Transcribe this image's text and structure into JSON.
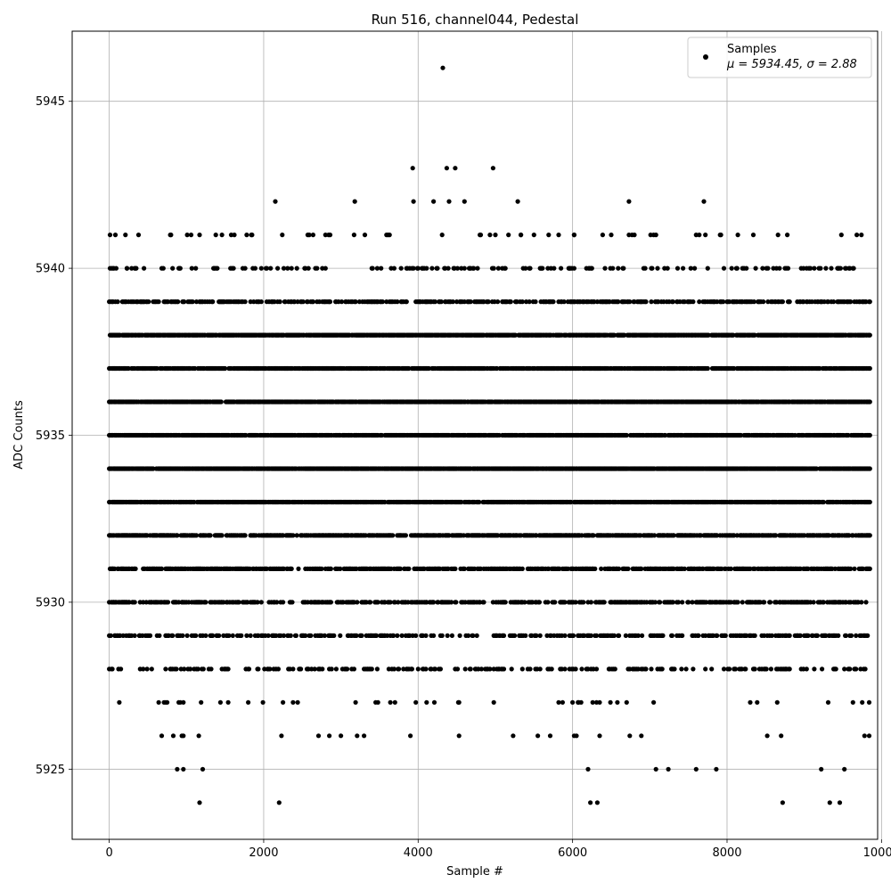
{
  "chart_data": {
    "type": "scatter",
    "title": "Run 516, channel044, Pedestal",
    "xlabel": "Sample #",
    "ylabel": "ADC Counts",
    "xlim": [
      -480,
      9950
    ],
    "ylim": [
      5922.9,
      5947.1
    ],
    "xticks": [
      0,
      2000,
      4000,
      6000,
      8000,
      10000
    ],
    "yticks": [
      5925,
      5930,
      5935,
      5940,
      5945
    ],
    "grid": true,
    "legend": {
      "placement": "top-right",
      "label": "Samples",
      "stats_line": "μ = 5934.45, σ = 2.88"
    },
    "marker_color": "#000000",
    "series": [
      {
        "name": "Samples",
        "n_points": 9850,
        "x_range": [
          0,
          9850
        ],
        "mean": 5934.45,
        "sigma": 2.88,
        "points": [
          [
            0,
            5939
          ],
          [
            10,
            5941
          ],
          [
            30,
            5940
          ],
          [
            50,
            5931
          ],
          [
            60,
            5930
          ],
          [
            90,
            5940
          ],
          [
            120,
            5928
          ],
          [
            150,
            5931
          ],
          [
            210,
            5941
          ],
          [
            230,
            5940
          ],
          [
            270,
            5929
          ],
          [
            380,
            5941
          ],
          [
            390,
            5929
          ],
          [
            450,
            5939
          ],
          [
            640,
            5927
          ],
          [
            680,
            5926
          ],
          [
            700,
            5940
          ],
          [
            800,
            5941
          ],
          [
            830,
            5926
          ],
          [
            880,
            5925
          ],
          [
            900,
            5940
          ],
          [
            920,
            5927
          ],
          [
            940,
            5926
          ],
          [
            960,
            5925
          ],
          [
            1060,
            5941
          ],
          [
            1120,
            5940
          ],
          [
            1160,
            5926
          ],
          [
            1170,
            5924
          ],
          [
            1210,
            5925
          ],
          [
            1580,
            5941
          ],
          [
            1620,
            5941
          ],
          [
            1780,
            5941
          ],
          [
            1850,
            5941
          ],
          [
            1990,
            5927
          ],
          [
            2150,
            5942
          ],
          [
            2200,
            5924
          ],
          [
            2230,
            5926
          ],
          [
            3000,
            5926
          ],
          [
            3180,
            5942
          ],
          [
            3310,
            5941
          ],
          [
            3300,
            5926
          ],
          [
            3480,
            5927
          ],
          [
            3900,
            5926
          ],
          [
            3930,
            5943
          ],
          [
            3940,
            5942
          ],
          [
            4200,
            5942
          ],
          [
            4320,
            5946
          ],
          [
            4370,
            5943
          ],
          [
            4400,
            5942
          ],
          [
            4480,
            5943
          ],
          [
            4530,
            5927
          ],
          [
            4600,
            5942
          ],
          [
            4700,
            5929
          ],
          [
            4970,
            5943
          ],
          [
            5000,
            5941
          ],
          [
            5080,
            5928
          ],
          [
            5290,
            5942
          ],
          [
            5330,
            5941
          ],
          [
            5550,
            5926
          ],
          [
            5710,
            5926
          ],
          [
            5820,
            5941
          ],
          [
            6020,
            5941
          ],
          [
            6050,
            5926
          ],
          [
            6200,
            5925
          ],
          [
            6230,
            5924
          ],
          [
            6320,
            5924
          ],
          [
            6350,
            5926
          ],
          [
            6500,
            5941
          ],
          [
            6730,
            5942
          ],
          [
            6770,
            5941
          ],
          [
            6890,
            5926
          ],
          [
            7050,
            5941
          ],
          [
            7080,
            5925
          ],
          [
            7240,
            5925
          ],
          [
            7600,
            5925
          ],
          [
            7600,
            5941
          ],
          [
            7700,
            5942
          ],
          [
            7860,
            5925
          ],
          [
            7920,
            5941
          ],
          [
            8720,
            5924
          ],
          [
            8700,
            5926
          ],
          [
            9220,
            5925
          ],
          [
            9330,
            5924
          ],
          [
            9460,
            5924
          ],
          [
            9520,
            5925
          ],
          [
            9580,
            5940
          ],
          [
            9780,
            5926
          ],
          [
            9840,
            5926
          ],
          [
            9840,
            5927
          ]
        ],
        "density_by_level": [
          {
            "y": 5924,
            "density": 0.0
          },
          {
            "y": 5925,
            "density": 0.0
          },
          {
            "y": 5926,
            "density": 0.01
          },
          {
            "y": 5927,
            "density": 0.04
          },
          {
            "y": 5928,
            "density": 0.22
          },
          {
            "y": 5929,
            "density": 0.32
          },
          {
            "y": 5930,
            "density": 0.45
          },
          {
            "y": 5931,
            "density": 0.55
          },
          {
            "y": 5932,
            "density": 0.62
          },
          {
            "y": 5933,
            "density": 0.78
          },
          {
            "y": 5934,
            "density": 0.92
          },
          {
            "y": 5935,
            "density": 0.8
          },
          {
            "y": 5936,
            "density": 0.85
          },
          {
            "y": 5937,
            "density": 0.75
          },
          {
            "y": 5938,
            "density": 0.82
          },
          {
            "y": 5939,
            "density": 0.4
          },
          {
            "y": 5940,
            "density": 0.16
          },
          {
            "y": 5941,
            "density": 0.03
          }
        ]
      }
    ]
  }
}
